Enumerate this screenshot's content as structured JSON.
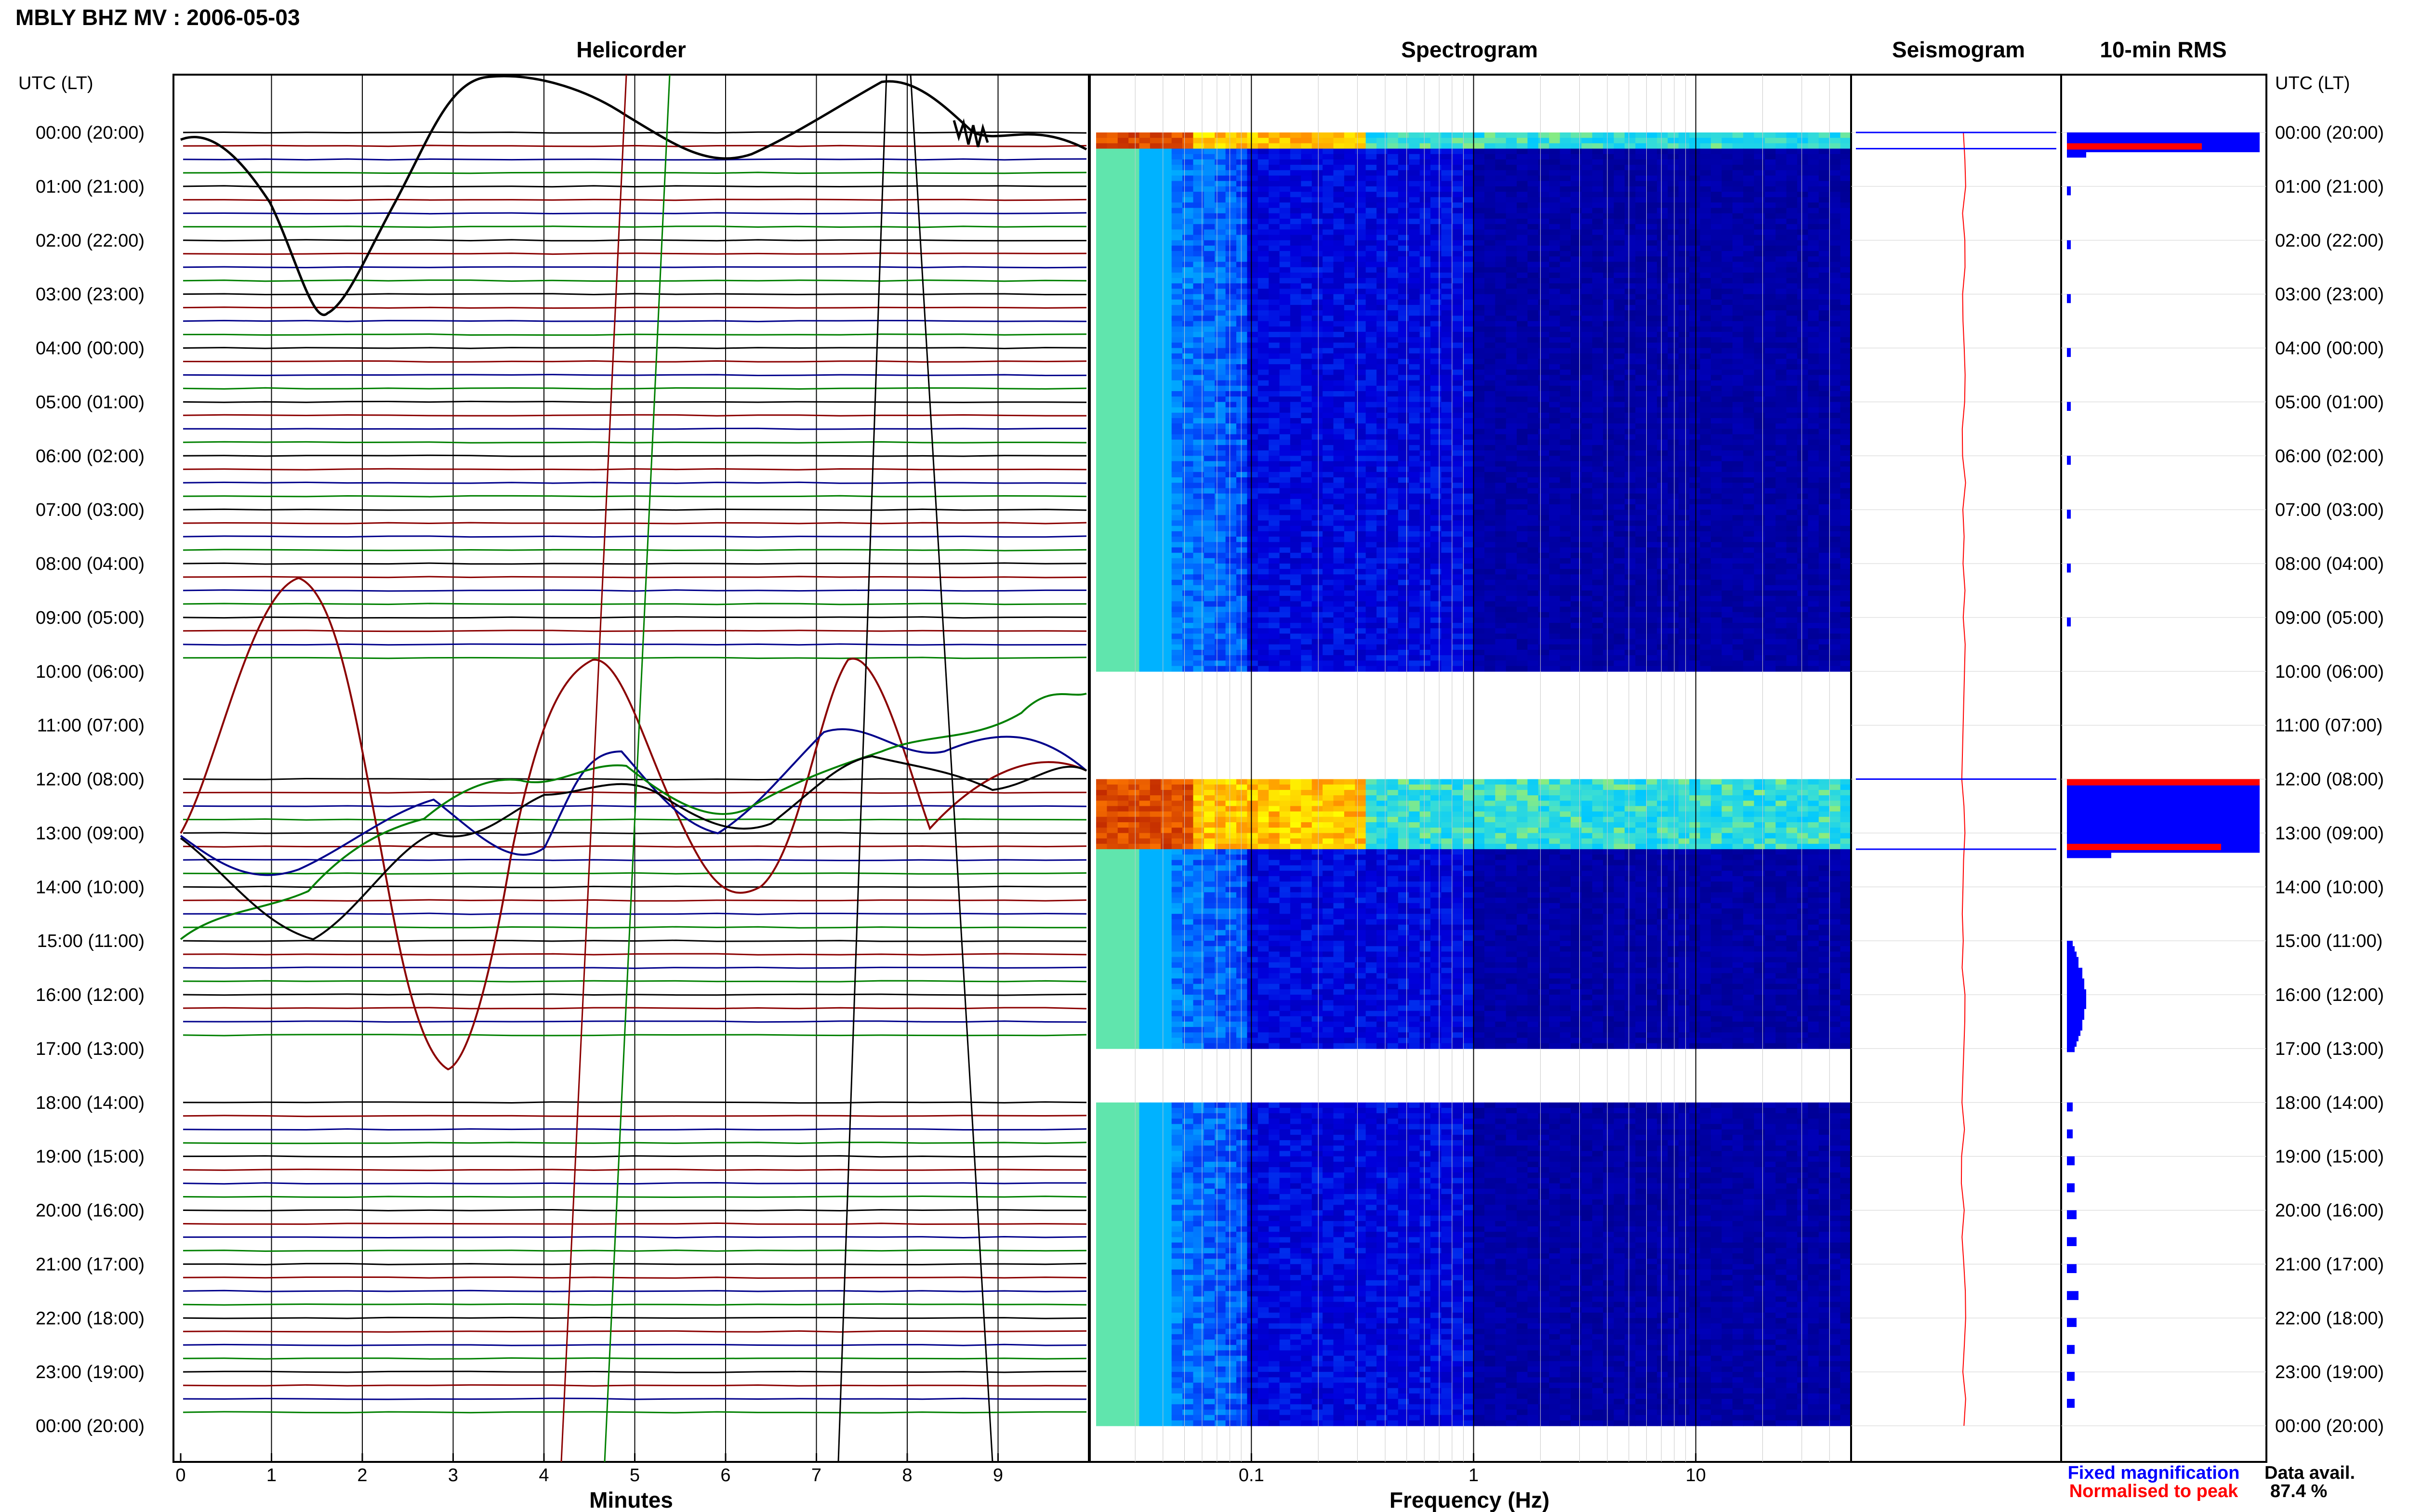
{
  "figure_title": "MBLY BHZ MV : 2006-05-03",
  "panels": {
    "helicorder": {
      "title": "Helicorder",
      "xlabel": "Minutes",
      "x_ticks": [
        "0",
        "1",
        "2",
        "3",
        "4",
        "5",
        "6",
        "7",
        "8",
        "9"
      ]
    },
    "spectrogram": {
      "title": "Spectrogram",
      "xlabel": "Frequency (Hz)",
      "x_ticks": [
        "0.1",
        "1",
        "10"
      ]
    },
    "seismogram": {
      "title": "Seismogram"
    },
    "rms": {
      "title": "10-min RMS"
    }
  },
  "time_axis": {
    "header": "UTC (LT)",
    "labels": [
      "00:00 (20:00)",
      "01:00 (21:00)",
      "02:00 (22:00)",
      "03:00 (23:00)",
      "04:00 (00:00)",
      "05:00 (01:00)",
      "06:00 (02:00)",
      "07:00 (03:00)",
      "08:00 (04:00)",
      "09:00 (05:00)",
      "10:00 (06:00)",
      "11:00 (07:00)",
      "12:00 (08:00)",
      "13:00 (09:00)",
      "14:00 (10:00)",
      "15:00 (11:00)",
      "16:00 (12:00)",
      "17:00 (13:00)",
      "18:00 (14:00)",
      "19:00 (15:00)",
      "20:00 (16:00)",
      "21:00 (17:00)",
      "22:00 (18:00)",
      "23:00 (19:00)",
      "00:00 (20:00)"
    ]
  },
  "legend": {
    "fixed_label": "Fixed magnification",
    "peak_label": "Normalised to peak",
    "fixed_color": "#0000ff",
    "peak_color": "#ff0000"
  },
  "data_availability": {
    "label": "Data avail.",
    "value": "87.4 %"
  },
  "colors": {
    "trace_black": "#000000",
    "trace_blue": "#00008b",
    "trace_green": "#008000",
    "trace_red": "#8b0000",
    "spectrogram_background": "#00008b",
    "spectrogram_low": "#40e0d0",
    "spectrogram_high": "#ff0000"
  },
  "chart_data": [
    {
      "type": "line",
      "name": "helicorder",
      "title": "Helicorder",
      "xlabel": "Minutes",
      "xlim": [
        0,
        10
      ],
      "hours_per_day": 24,
      "gap_hours": [
        [
          10,
          12
        ],
        [
          17,
          18
        ]
      ],
      "high_amplitude_hours": [
        0,
        12,
        13
      ]
    },
    {
      "type": "heatmap",
      "name": "spectrogram",
      "title": "Spectrogram",
      "xlabel": "Frequency (Hz)",
      "xscale": "log",
      "xlim": [
        0.02,
        50
      ],
      "gap_hours": [
        [
          10,
          12
        ],
        [
          17,
          18
        ]
      ],
      "high_energy_hours": [
        [
          0,
          0.3
        ],
        [
          12,
          13.3
        ]
      ]
    },
    {
      "type": "line",
      "name": "seismogram",
      "title": "Seismogram",
      "gap_hours": [
        [
          10,
          12
        ],
        [
          17,
          18
        ]
      ]
    },
    {
      "type": "bar",
      "name": "rms",
      "title": "10-min RMS",
      "orientation": "horizontal",
      "series": [
        {
          "name": "Fixed magnification",
          "hours": [
            0.0,
            0.1,
            0.2,
            0.3,
            1.0,
            2.0,
            3.0,
            4.0,
            5.0,
            6.0,
            7.0,
            8.0,
            9.0,
            12.0,
            12.1,
            12.2,
            12.3,
            12.4,
            12.5,
            12.6,
            12.7,
            12.8,
            12.9,
            13.0,
            13.1,
            13.2,
            13.3,
            15.0,
            15.1,
            15.2,
            15.3,
            15.4,
            15.5,
            15.6,
            15.7,
            15.8,
            15.9,
            16.0,
            16.1,
            16.2,
            16.3,
            16.4,
            16.5,
            16.6,
            16.7,
            16.8,
            16.9,
            18.0,
            18.5,
            19.0,
            19.5,
            20.0,
            20.5,
            21.0,
            21.5,
            22.0,
            22.5,
            23.0,
            23.5
          ],
          "values": [
            1.0,
            1.0,
            1.0,
            0.1,
            0.02,
            0.02,
            0.02,
            0.02,
            0.02,
            0.02,
            0.02,
            0.02,
            0.02,
            1.0,
            1.0,
            1.0,
            1.0,
            1.0,
            1.0,
            1.0,
            1.0,
            1.0,
            1.0,
            1.0,
            1.0,
            1.0,
            0.23,
            0.03,
            0.04,
            0.05,
            0.06,
            0.06,
            0.08,
            0.08,
            0.09,
            0.09,
            0.1,
            0.1,
            0.1,
            0.09,
            0.09,
            0.08,
            0.08,
            0.07,
            0.06,
            0.05,
            0.04,
            0.03,
            0.03,
            0.04,
            0.04,
            0.05,
            0.05,
            0.05,
            0.06,
            0.05,
            0.04,
            0.04,
            0.04
          ]
        },
        {
          "name": "Normalised to peak",
          "hours": [
            0.2,
            12.0,
            13.2
          ],
          "values": [
            0.7,
            1.0,
            0.8
          ]
        }
      ]
    }
  ]
}
